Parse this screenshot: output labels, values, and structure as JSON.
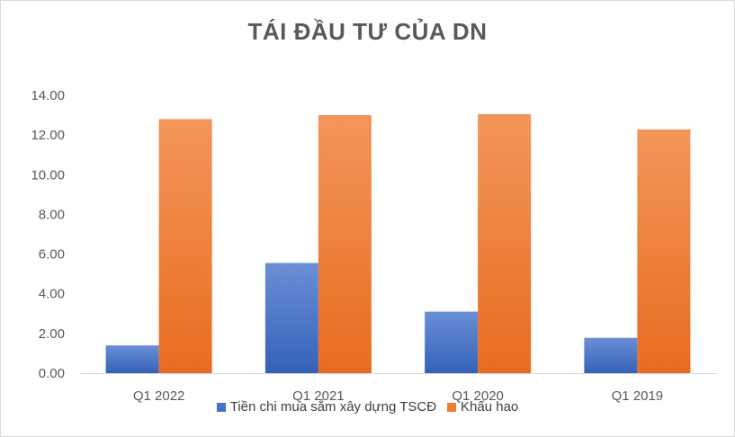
{
  "chart_data": {
    "type": "bar",
    "title": "TÁI ĐẦU TƯ CỦA DN",
    "categories": [
      "Q1 2022",
      "Q1 2021",
      "Q1 2020",
      "Q1 2019"
    ],
    "series": [
      {
        "name": "Tiền chi mua sắm xây dựng TSCĐ",
        "values": [
          1.4,
          5.55,
          3.1,
          1.78
        ],
        "color": "#4472C4"
      },
      {
        "name": "Khấu hao",
        "values": [
          12.8,
          13.0,
          13.05,
          12.28
        ],
        "color": "#ED7D31"
      }
    ],
    "ylim": [
      0,
      14
    ],
    "yticks": [
      "0.00",
      "2.00",
      "4.00",
      "6.00",
      "8.00",
      "10.00",
      "12.00",
      "14.00"
    ],
    "grid": false,
    "legend": "bottom"
  }
}
